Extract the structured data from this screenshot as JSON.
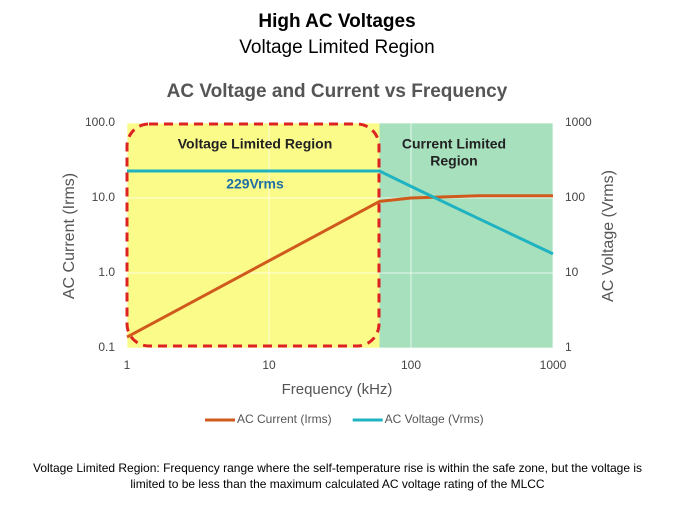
{
  "header": {
    "title": "High AC Voltages",
    "subtitle": "Voltage Limited Region"
  },
  "chart_data": {
    "type": "line",
    "title": "AC Voltage and Current vs Frequency",
    "x_label": "Frequency (kHz)",
    "y_label": "AC Current (Irms)",
    "y2_label": "AC Voltage (Vrms)",
    "log_x": true,
    "log_y": true,
    "log_y2": true,
    "xlim": [
      1,
      1000
    ],
    "xticks": [
      1,
      10,
      100,
      1000
    ],
    "ylim": [
      0.1,
      100
    ],
    "yticks": [
      0.1,
      {
        "value": 1,
        "label": "1.0"
      },
      {
        "value": 10,
        "label": "10.0"
      },
      {
        "value": 100,
        "label": "100.0"
      }
    ],
    "y2lim": [
      1,
      1000
    ],
    "y2ticks": [
      1,
      10,
      100,
      1000
    ],
    "grid": true,
    "regions": [
      {
        "lines": [
          "Voltage Limited Region"
        ],
        "from": 1,
        "to": 60,
        "color": "#fbfb8a"
      },
      {
        "lines": [
          "Current Limited",
          "Region"
        ],
        "from": 60,
        "to": 1000,
        "color": "#a7e0bd"
      }
    ],
    "annotation": "229Vrms",
    "x": [
      1,
      60,
      100,
      300,
      1000
    ],
    "series": [
      {
        "name": "AC Current (Irms)",
        "color": "#d05a1c",
        "values": [
          0.14,
          9,
          10,
          10.7,
          10.7
        ]
      },
      {
        "name": "AC Voltage (Vrms)",
        "color": "#1fb3c2",
        "axis": "y2",
        "values": [
          229,
          229,
          143,
          53,
          18
        ]
      }
    ],
    "legend": "bottom"
  },
  "footnote": "Voltage Limited Region: Frequency range where the self-temperature rise is within the safe zone, but the voltage is limited to be less than the maximum calculated AC voltage  rating of the MLCC"
}
